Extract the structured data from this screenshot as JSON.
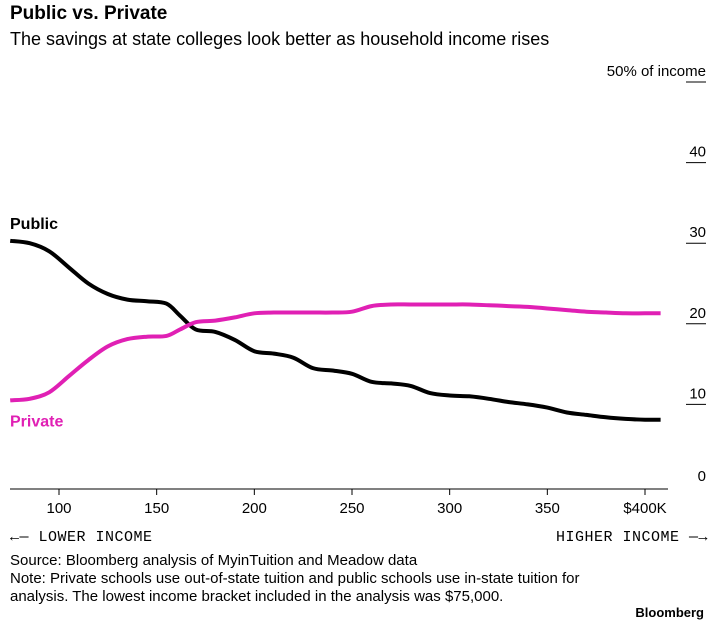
{
  "header": {
    "title": "Public vs. Private",
    "subtitle": "The savings at state colleges look better as household income rises"
  },
  "chart_data": {
    "type": "line",
    "title": "Public vs. Private",
    "subtitle": "The savings at state colleges look better as household income rises",
    "xlabel": "",
    "ylabel": "% of income",
    "xlim": [
      75,
      410
    ],
    "ylim": [
      0,
      50
    ],
    "x_ticks": [
      100,
      150,
      200,
      250,
      300,
      350,
      400
    ],
    "x_tick_labels": [
      "100",
      "150",
      "200",
      "250",
      "300",
      "350",
      "$400K"
    ],
    "y_ticks": [
      0,
      10,
      20,
      30,
      40,
      50
    ],
    "y_tick_labels": [
      "0",
      "10",
      "20",
      "30",
      "40",
      "50% of income"
    ],
    "series": [
      {
        "name": "Public",
        "color": "#000000",
        "x": [
          75,
          85,
          95,
          105,
          115,
          125,
          135,
          145,
          155,
          162,
          170,
          180,
          190,
          200,
          210,
          220,
          230,
          240,
          250,
          260,
          270,
          280,
          290,
          300,
          310,
          320,
          330,
          340,
          350,
          360,
          370,
          380,
          390,
          400,
          408
        ],
        "y": [
          30.3,
          30.0,
          29.0,
          27.0,
          25.0,
          23.7,
          23.0,
          22.8,
          22.5,
          21.0,
          19.3,
          19.0,
          18.0,
          16.6,
          16.3,
          15.8,
          14.5,
          14.2,
          13.8,
          12.8,
          12.6,
          12.3,
          11.4,
          11.1,
          11.0,
          10.7,
          10.3,
          10.0,
          9.6,
          9.0,
          8.7,
          8.4,
          8.2,
          8.1,
          8.1
        ]
      },
      {
        "name": "Private",
        "color": "#e020b4",
        "x": [
          75,
          85,
          95,
          105,
          115,
          125,
          135,
          145,
          155,
          162,
          170,
          180,
          190,
          200,
          210,
          220,
          230,
          240,
          250,
          260,
          270,
          280,
          290,
          300,
          310,
          320,
          330,
          340,
          350,
          360,
          370,
          380,
          390,
          400,
          408
        ],
        "y": [
          10.5,
          10.7,
          11.5,
          13.5,
          15.5,
          17.2,
          18.1,
          18.4,
          18.5,
          19.3,
          20.2,
          20.4,
          20.8,
          21.3,
          21.4,
          21.4,
          21.4,
          21.4,
          21.5,
          22.2,
          22.4,
          22.4,
          22.4,
          22.4,
          22.4,
          22.3,
          22.2,
          22.1,
          21.9,
          21.7,
          21.5,
          21.4,
          21.3,
          21.3,
          21.3
        ]
      }
    ],
    "annotations": [
      {
        "text": "Public",
        "series": "Public"
      },
      {
        "text": "Private",
        "series": "Private"
      }
    ],
    "legend": "inline-labels"
  },
  "axis_direction": {
    "left": "←— LOWER INCOME",
    "right": "HIGHER INCOME —→"
  },
  "footer": {
    "source": "Source: Bloomberg analysis of MyinTuition and Meadow data",
    "note": "Note: Private schools use out-of-state tuition and public schools use in-state tuition for analysis. The lowest income bracket included in the analysis was $75,000.",
    "brand": "Bloomberg"
  }
}
